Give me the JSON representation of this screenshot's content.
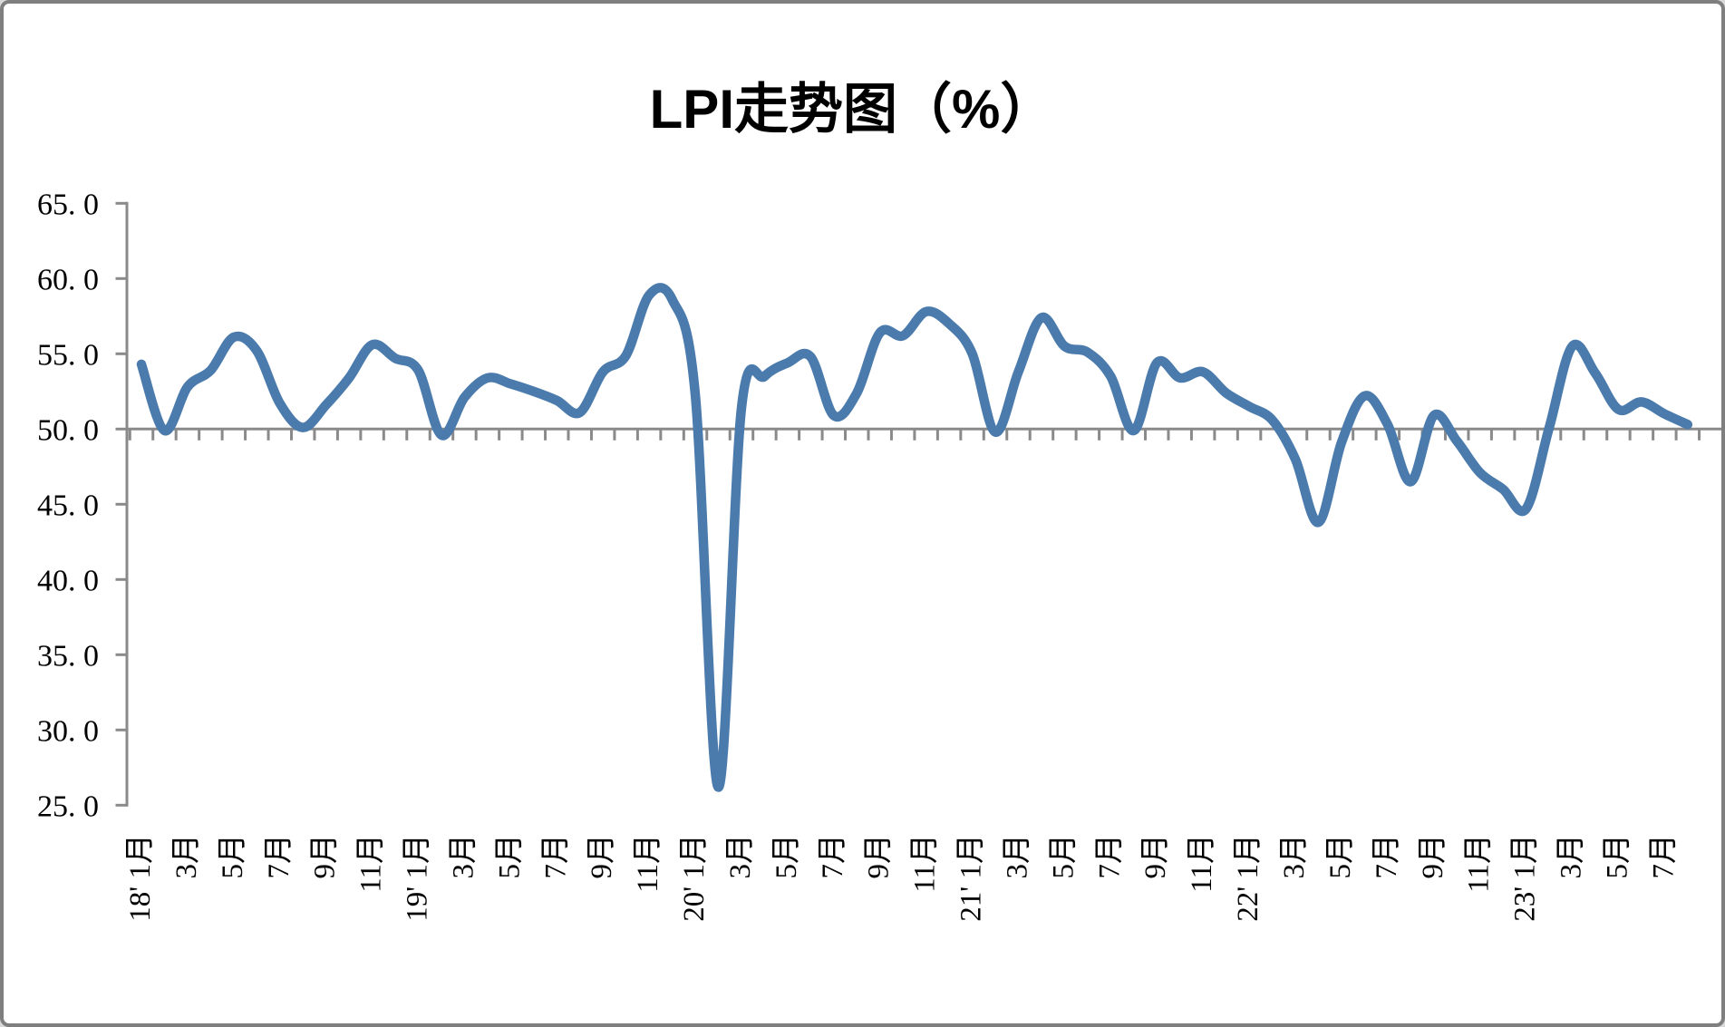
{
  "page": {
    "title": "LPI走势图（%）"
  },
  "chart_data": {
    "type": "line",
    "title": "LPI走势图（%）",
    "series_name": "LPI",
    "unit": "%",
    "smooth": true,
    "grid": "off",
    "legend": "none",
    "ylim": [
      25,
      65
    ],
    "y_step": 5,
    "axis_cross_value": 50,
    "y_ticks": [
      65,
      60,
      55,
      50,
      45,
      40,
      35,
      30,
      25
    ],
    "y_tick_labels": [
      "65. 0",
      "60. 0",
      "55. 0",
      "50. 0",
      "45. 0",
      "40. 0",
      "35. 0",
      "30. 0",
      "25. 0"
    ],
    "x_label_every": 2,
    "x_tick_labels": [
      "18' 1月",
      "3月",
      "5月",
      "7月",
      "9月",
      "11月",
      "19' 1月",
      "3月",
      "5月",
      "7月",
      "9月",
      "11月",
      "20' 1月",
      "3月",
      "5月",
      "7月",
      "9月",
      "11月",
      "21' 1月",
      "3月",
      "5月",
      "7月",
      "9月",
      "11月",
      "22' 1月",
      "3月",
      "5月",
      "7月",
      "9月",
      "11月",
      "23' 1月",
      "3月",
      "5月",
      "7月"
    ],
    "months": [
      "2018-01",
      "2018-02",
      "2018-03",
      "2018-04",
      "2018-05",
      "2018-06",
      "2018-07",
      "2018-08",
      "2018-09",
      "2018-10",
      "2018-11",
      "2018-12",
      "2019-01",
      "2019-02",
      "2019-03",
      "2019-04",
      "2019-05",
      "2019-06",
      "2019-07",
      "2019-08",
      "2019-09",
      "2019-10",
      "2019-11",
      "2019-12",
      "2020-01",
      "2020-02",
      "2020-03",
      "2020-04",
      "2020-05",
      "2020-06",
      "2020-07",
      "2020-08",
      "2020-09",
      "2020-10",
      "2020-11",
      "2020-12",
      "2021-01",
      "2021-02",
      "2021-03",
      "2021-04",
      "2021-05",
      "2021-06",
      "2021-07",
      "2021-08",
      "2021-09",
      "2021-10",
      "2021-11",
      "2021-12",
      "2022-01",
      "2022-02",
      "2022-03",
      "2022-04",
      "2022-05",
      "2022-06",
      "2022-07",
      "2022-08",
      "2022-09",
      "2022-10",
      "2022-11",
      "2022-12",
      "2023-01",
      "2023-02",
      "2023-03",
      "2023-04",
      "2023-05",
      "2023-06",
      "2023-07",
      "2023-08"
    ],
    "values": [
      54.3,
      49.9,
      52.8,
      53.9,
      56.1,
      55.2,
      51.7,
      50.1,
      51.6,
      53.4,
      55.6,
      54.7,
      53.9,
      49.6,
      52.1,
      53.4,
      53.0,
      52.5,
      51.9,
      51.1,
      53.8,
      54.9,
      58.9,
      58.6,
      52.3,
      26.2,
      51.4,
      53.5,
      54.4,
      54.8,
      50.9,
      52.4,
      56.4,
      56.2,
      57.8,
      57.0,
      55.0,
      49.8,
      53.8,
      57.4,
      55.5,
      55.1,
      53.5,
      49.9,
      54.4,
      53.4,
      53.8,
      52.4,
      51.5,
      50.6,
      48.0,
      43.8,
      49.1,
      52.2,
      50.3,
      46.5,
      50.9,
      49.2,
      47.1,
      46.0,
      44.7,
      50.1,
      55.5,
      53.7,
      51.3,
      51.8,
      51.0,
      50.3
    ],
    "line_color": "#4b7bac",
    "axis_color": "#8a8a8a",
    "text_color": "#000000"
  }
}
